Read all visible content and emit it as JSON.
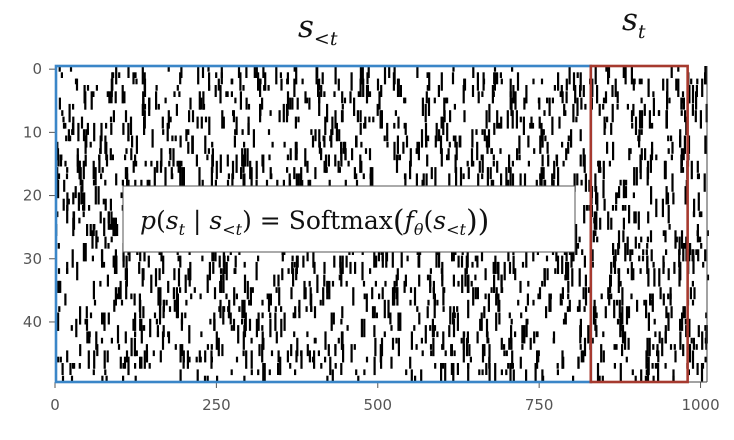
{
  "header": {
    "prefix_var": "s",
    "prefix_sub": "<t",
    "target_var": "s",
    "target_sub": "t"
  },
  "formula": {
    "p": "p",
    "open": "(",
    "s": "s",
    "t": "t",
    "bar": " | ",
    "lt": "<t",
    "close_eq": ") = ",
    "softmax": "Softmax",
    "f": "f",
    "theta": "θ",
    "tail": "))"
  },
  "chart_data": {
    "type": "heatmap",
    "x_ticks": [
      0,
      250,
      500,
      750,
      1000
    ],
    "y_ticks": [
      0,
      10,
      20,
      30,
      40
    ],
    "x_tick_labels": [
      "0",
      "250",
      "500",
      "750",
      "1000"
    ],
    "y_tick_labels": [
      "0",
      "10",
      "20",
      "30",
      "40"
    ],
    "xlim": [
      0,
      1010
    ],
    "ylim": [
      49.5,
      -0.5
    ],
    "prefix_range": [
      0,
      830
    ],
    "target_range": [
      830,
      980
    ],
    "colors": {
      "prefix_box": "#3a86c8",
      "target_box": "#a63a2f",
      "spike": "#000000"
    }
  }
}
